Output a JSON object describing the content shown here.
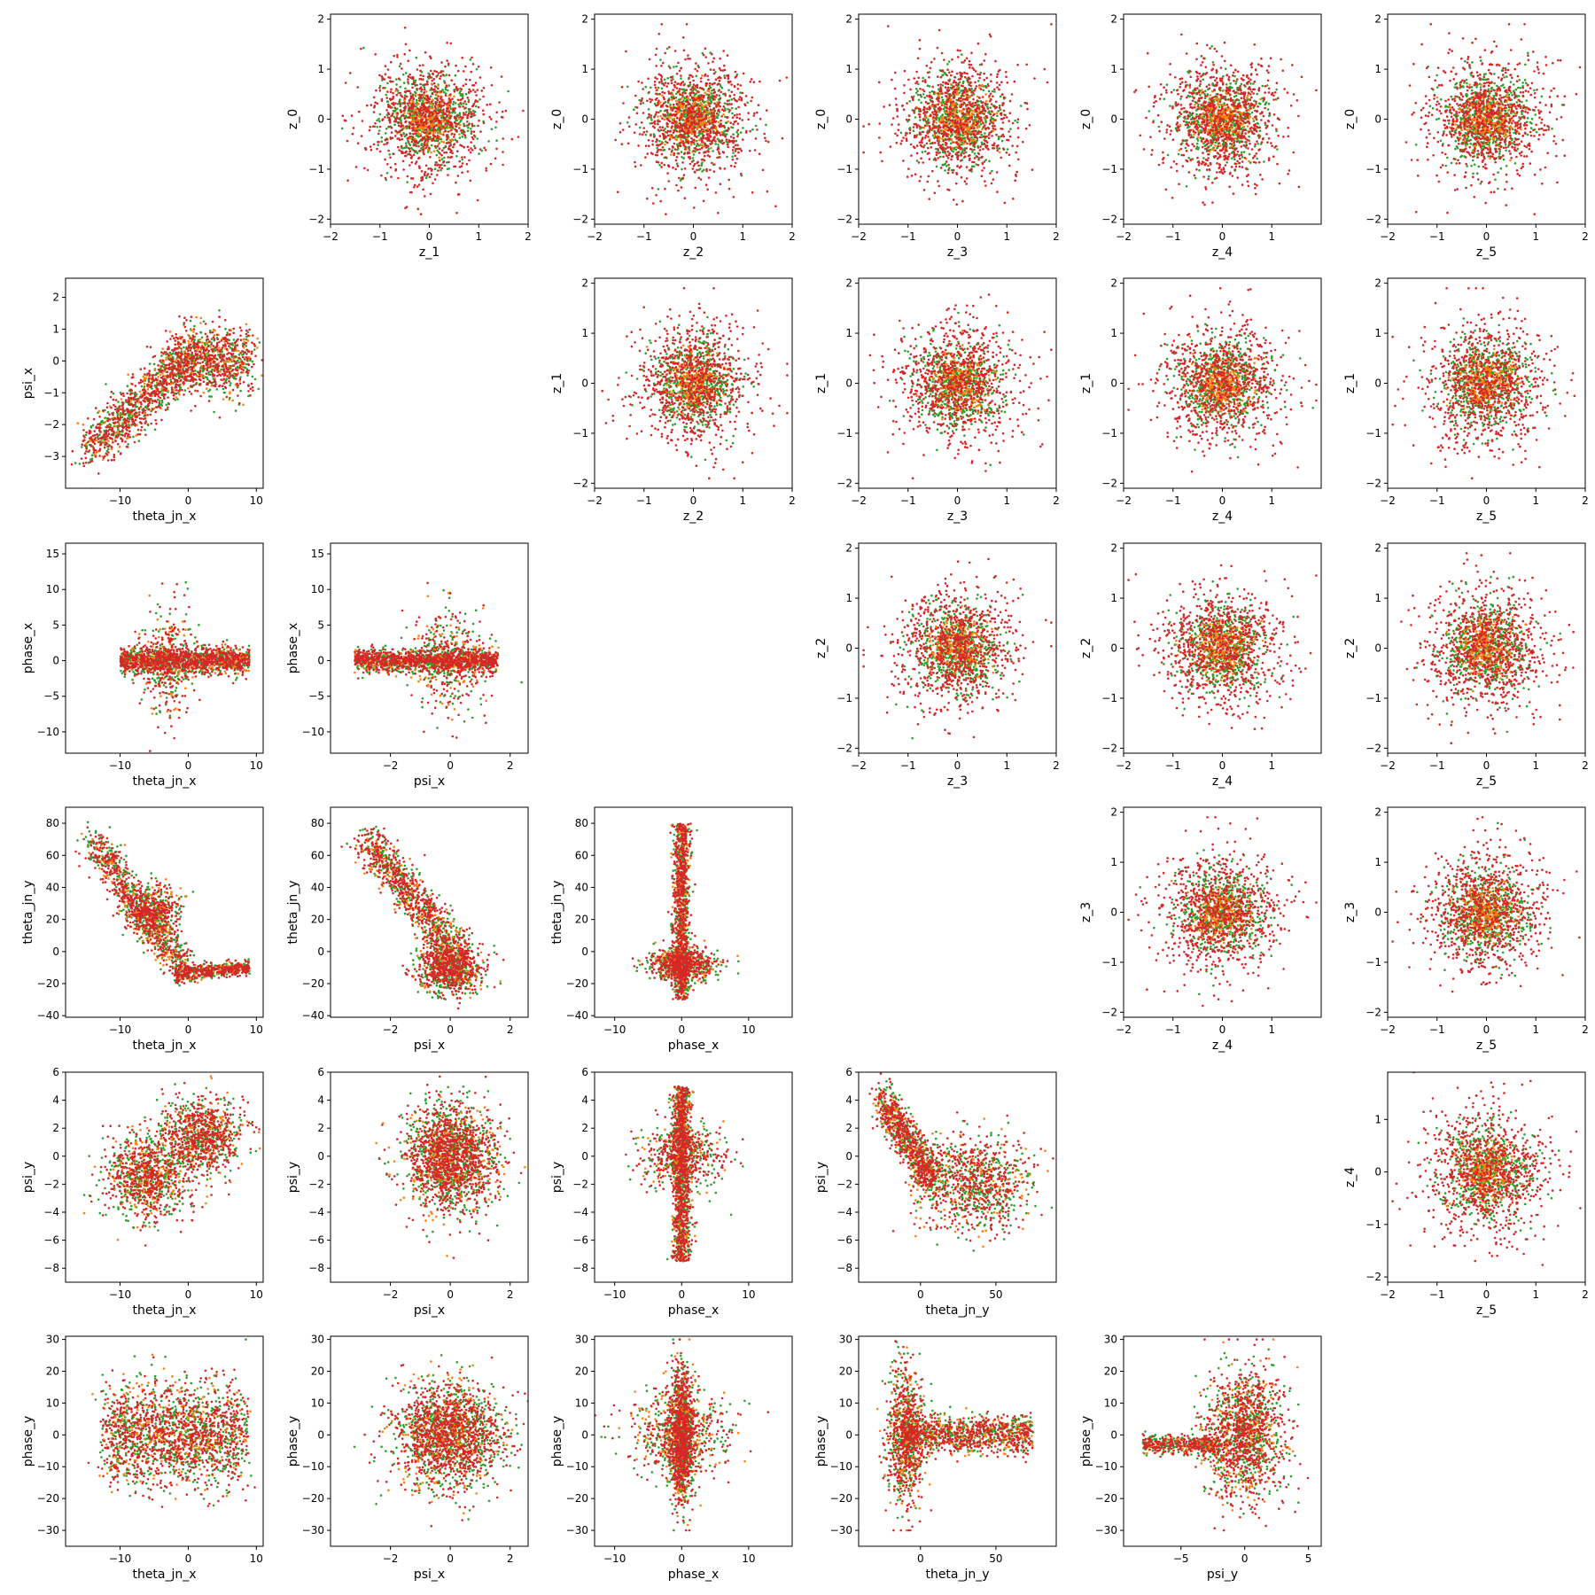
{
  "figure": {
    "layout": "6x6 lower/upper scatter matrix, diagonal empty"
  },
  "colors": {
    "red": "#d62728",
    "green": "#2ca02c",
    "orange": "#ff7f0e"
  },
  "chart_data": {
    "type": "scatter",
    "series_colors": [
      "#d62728",
      "#2ca02c",
      "#ff7f0e"
    ],
    "axes": [
      {
        "row": 0,
        "col": 1,
        "xlabel": "z_1",
        "ylabel": "z_0",
        "xlim": [
          -2,
          2
        ],
        "ylim": [
          -2.1,
          2.1
        ],
        "xticks": [
          -2,
          -1,
          0,
          1,
          2
        ],
        "yticks": [
          -2,
          -1,
          0,
          1,
          2
        ],
        "pattern": "gauss",
        "xc": 0,
        "yc": 0,
        "xs": 0.6,
        "ys": 0.6
      },
      {
        "row": 0,
        "col": 2,
        "xlabel": "z_2",
        "ylabel": "z_0",
        "xlim": [
          -2,
          2
        ],
        "ylim": [
          -2.1,
          2.1
        ],
        "xticks": [
          -2,
          -1,
          0,
          1,
          2
        ],
        "yticks": [
          -2,
          -1,
          0,
          1,
          2
        ],
        "pattern": "gauss",
        "xc": 0,
        "yc": 0,
        "xs": 0.6,
        "ys": 0.6
      },
      {
        "row": 0,
        "col": 3,
        "xlabel": "z_3",
        "ylabel": "z_0",
        "xlim": [
          -2,
          2
        ],
        "ylim": [
          -2.1,
          2.1
        ],
        "xticks": [
          -2,
          -1,
          0,
          1,
          2
        ],
        "yticks": [
          -2,
          -1,
          0,
          1,
          2
        ],
        "pattern": "gauss",
        "xc": 0,
        "yc": 0,
        "xs": 0.6,
        "ys": 0.6
      },
      {
        "row": 0,
        "col": 4,
        "xlabel": "z_4",
        "ylabel": "z_0",
        "xlim": [
          -2,
          2
        ],
        "ylim": [
          -2.1,
          2.1
        ],
        "xticks": [
          -2,
          -1,
          0,
          1
        ],
        "yticks": [
          -2,
          -1,
          0,
          1,
          2
        ],
        "pattern": "gauss",
        "xc": 0,
        "yc": 0,
        "xs": 0.6,
        "ys": 0.6
      },
      {
        "row": 0,
        "col": 5,
        "xlabel": "z_5",
        "ylabel": "z_0",
        "xlim": [
          -2,
          2
        ],
        "ylim": [
          -2.1,
          2.1
        ],
        "xticks": [
          -2,
          -1,
          0,
          1,
          2
        ],
        "yticks": [
          -2,
          -1,
          0,
          1,
          2
        ],
        "pattern": "gauss",
        "xc": 0,
        "yc": 0,
        "xs": 0.6,
        "ys": 0.6
      },
      {
        "row": 1,
        "col": 0,
        "xlabel": "theta_jn_x",
        "ylabel": "psi_x",
        "xlim": [
          -18,
          11
        ],
        "ylim": [
          -4,
          2.6
        ],
        "xticks": [
          -10,
          0,
          10
        ],
        "yticks": [
          -3,
          -2,
          -1,
          0,
          1,
          2
        ],
        "pattern": "tjx_psix"
      },
      {
        "row": 1,
        "col": 2,
        "xlabel": "z_2",
        "ylabel": "z_1",
        "xlim": [
          -2,
          2
        ],
        "ylim": [
          -2.1,
          2.1
        ],
        "xticks": [
          -2,
          -1,
          0,
          1,
          2
        ],
        "yticks": [
          -2,
          -1,
          0,
          1,
          2
        ],
        "pattern": "gauss",
        "xc": 0,
        "yc": 0,
        "xs": 0.6,
        "ys": 0.6
      },
      {
        "row": 1,
        "col": 3,
        "xlabel": "z_3",
        "ylabel": "z_1",
        "xlim": [
          -2,
          2
        ],
        "ylim": [
          -2.1,
          2.1
        ],
        "xticks": [
          -2,
          -1,
          0,
          1,
          2
        ],
        "yticks": [
          -2,
          -1,
          0,
          1,
          2
        ],
        "pattern": "gauss",
        "xc": 0,
        "yc": 0,
        "xs": 0.6,
        "ys": 0.6
      },
      {
        "row": 1,
        "col": 4,
        "xlabel": "z_4",
        "ylabel": "z_1",
        "xlim": [
          -2,
          2
        ],
        "ylim": [
          -2.1,
          2.1
        ],
        "xticks": [
          -2,
          -1,
          0,
          1
        ],
        "yticks": [
          -2,
          -1,
          0,
          1,
          2
        ],
        "pattern": "gauss",
        "xc": 0,
        "yc": 0,
        "xs": 0.6,
        "ys": 0.6
      },
      {
        "row": 1,
        "col": 5,
        "xlabel": "z_5",
        "ylabel": "z_1",
        "xlim": [
          -2,
          2
        ],
        "ylim": [
          -2.1,
          2.1
        ],
        "xticks": [
          -2,
          -1,
          0,
          1,
          2
        ],
        "yticks": [
          -2,
          -1,
          0,
          1,
          2
        ],
        "pattern": "gauss",
        "xc": 0,
        "yc": 0,
        "xs": 0.6,
        "ys": 0.6
      },
      {
        "row": 2,
        "col": 0,
        "xlabel": "theta_jn_x",
        "ylabel": "phase_x",
        "xlim": [
          -18,
          11
        ],
        "ylim": [
          -13,
          16.5
        ],
        "xticks": [
          -10,
          0,
          10
        ],
        "yticks": [
          -10,
          -5,
          0,
          5,
          10,
          15
        ],
        "pattern": "tjx_phx"
      },
      {
        "row": 2,
        "col": 1,
        "xlabel": "psi_x",
        "ylabel": "phase_x",
        "xlim": [
          -4,
          2.6
        ],
        "ylim": [
          -13,
          16.5
        ],
        "xticks": [
          -2,
          0,
          2
        ],
        "yticks": [
          -10,
          -5,
          0,
          5,
          10,
          15
        ],
        "pattern": "psix_phx"
      },
      {
        "row": 2,
        "col": 3,
        "xlabel": "z_3",
        "ylabel": "z_2",
        "xlim": [
          -2,
          2
        ],
        "ylim": [
          -2.1,
          2.1
        ],
        "xticks": [
          -2,
          -1,
          0,
          1,
          2
        ],
        "yticks": [
          -2,
          -1,
          0,
          1,
          2
        ],
        "pattern": "gauss",
        "xc": 0,
        "yc": 0,
        "xs": 0.6,
        "ys": 0.6
      },
      {
        "row": 2,
        "col": 4,
        "xlabel": "z_4",
        "ylabel": "z_2",
        "xlim": [
          -2,
          2
        ],
        "ylim": [
          -2.1,
          2.1
        ],
        "xticks": [
          -2,
          -1,
          0,
          1
        ],
        "yticks": [
          -2,
          -1,
          0,
          1,
          2
        ],
        "pattern": "gauss",
        "xc": 0,
        "yc": 0,
        "xs": 0.6,
        "ys": 0.6
      },
      {
        "row": 2,
        "col": 5,
        "xlabel": "z_5",
        "ylabel": "z_2",
        "xlim": [
          -2,
          2
        ],
        "ylim": [
          -2.1,
          2.1
        ],
        "xticks": [
          -2,
          -1,
          0,
          1,
          2
        ],
        "yticks": [
          -2,
          -1,
          0,
          1,
          2
        ],
        "pattern": "gauss",
        "xc": 0,
        "yc": 0,
        "xs": 0.6,
        "ys": 0.6
      },
      {
        "row": 3,
        "col": 0,
        "xlabel": "theta_jn_x",
        "ylabel": "theta_jn_y",
        "xlim": [
          -18,
          11
        ],
        "ylim": [
          -41,
          90
        ],
        "xticks": [
          -10,
          0,
          10
        ],
        "yticks": [
          -40,
          -20,
          0,
          20,
          40,
          60,
          80
        ],
        "pattern": "tjx_tjy"
      },
      {
        "row": 3,
        "col": 1,
        "xlabel": "psi_x",
        "ylabel": "theta_jn_y",
        "xlim": [
          -4,
          2.6
        ],
        "ylim": [
          -41,
          90
        ],
        "xticks": [
          -2,
          0,
          2
        ],
        "yticks": [
          -40,
          -20,
          0,
          20,
          40,
          60,
          80
        ],
        "pattern": "psix_tjy"
      },
      {
        "row": 3,
        "col": 2,
        "xlabel": "phase_x",
        "ylabel": "theta_jn_y",
        "xlim": [
          -13,
          16.5
        ],
        "ylim": [
          -41,
          90
        ],
        "xticks": [
          -10,
          0,
          10
        ],
        "yticks": [
          -40,
          -20,
          0,
          20,
          40,
          60,
          80
        ],
        "pattern": "phx_tjy"
      },
      {
        "row": 3,
        "col": 4,
        "xlabel": "z_4",
        "ylabel": "z_3",
        "xlim": [
          -2,
          2
        ],
        "ylim": [
          -2.1,
          2.1
        ],
        "xticks": [
          -2,
          -1,
          0,
          1
        ],
        "yticks": [
          -2,
          -1,
          0,
          1,
          2
        ],
        "pattern": "gauss",
        "xc": 0,
        "yc": 0,
        "xs": 0.6,
        "ys": 0.6
      },
      {
        "row": 3,
        "col": 5,
        "xlabel": "z_5",
        "ylabel": "z_3",
        "xlim": [
          -2,
          2
        ],
        "ylim": [
          -2.1,
          2.1
        ],
        "xticks": [
          -2,
          -1,
          0,
          1,
          2
        ],
        "yticks": [
          -2,
          -1,
          0,
          1,
          2
        ],
        "pattern": "gauss",
        "xc": 0,
        "yc": 0,
        "xs": 0.6,
        "ys": 0.6
      },
      {
        "row": 4,
        "col": 0,
        "xlabel": "theta_jn_x",
        "ylabel": "psi_y",
        "xlim": [
          -18,
          11
        ],
        "ylim": [
          -9,
          6
        ],
        "xticks": [
          -10,
          0,
          10
        ],
        "yticks": [
          -8,
          -6,
          -4,
          -2,
          0,
          2,
          4,
          6
        ],
        "pattern": "tjx_psiy"
      },
      {
        "row": 4,
        "col": 1,
        "xlabel": "psi_x",
        "ylabel": "psi_y",
        "xlim": [
          -4,
          2.6
        ],
        "ylim": [
          -9,
          6
        ],
        "xticks": [
          -2,
          0,
          2
        ],
        "yticks": [
          -8,
          -6,
          -4,
          -2,
          0,
          2,
          4,
          6
        ],
        "pattern": "psix_psiy"
      },
      {
        "row": 4,
        "col": 2,
        "xlabel": "phase_x",
        "ylabel": "psi_y",
        "xlim": [
          -13,
          16.5
        ],
        "ylim": [
          -9,
          6
        ],
        "xticks": [
          -10,
          0,
          10
        ],
        "yticks": [
          -8,
          -6,
          -4,
          -2,
          0,
          2,
          4,
          6
        ],
        "pattern": "phx_psiy"
      },
      {
        "row": 4,
        "col": 3,
        "xlabel": "theta_jn_y",
        "ylabel": "psi_y",
        "xlim": [
          -41,
          90
        ],
        "ylim": [
          -9,
          6
        ],
        "xticks": [
          0,
          50
        ],
        "yticks": [
          -8,
          -6,
          -4,
          -2,
          0,
          2,
          4,
          6
        ],
        "pattern": "tjy_psiy"
      },
      {
        "row": 4,
        "col": 5,
        "xlabel": "z_5",
        "ylabel": "z_4",
        "xlim": [
          -2,
          2
        ],
        "ylim": [
          -2.1,
          1.9
        ],
        "xticks": [
          -2,
          -1,
          0,
          1,
          2
        ],
        "yticks": [
          -2,
          -1,
          0,
          1
        ],
        "pattern": "gauss",
        "xc": 0,
        "yc": 0,
        "xs": 0.6,
        "ys": 0.6
      },
      {
        "row": 5,
        "col": 0,
        "xlabel": "theta_jn_x",
        "ylabel": "phase_y",
        "xlim": [
          -18,
          11
        ],
        "ylim": [
          -35,
          31
        ],
        "xticks": [
          -10,
          0,
          10
        ],
        "yticks": [
          -30,
          -20,
          -10,
          0,
          10,
          20,
          30
        ],
        "pattern": "tjx_phy"
      },
      {
        "row": 5,
        "col": 1,
        "xlabel": "psi_x",
        "ylabel": "phase_y",
        "xlim": [
          -4,
          2.6
        ],
        "ylim": [
          -35,
          31
        ],
        "xticks": [
          -2,
          0,
          2
        ],
        "yticks": [
          -30,
          -20,
          -10,
          0,
          10,
          20,
          30
        ],
        "pattern": "psix_phy"
      },
      {
        "row": 5,
        "col": 2,
        "xlabel": "phase_x",
        "ylabel": "phase_y",
        "xlim": [
          -13,
          16.5
        ],
        "ylim": [
          -35,
          31
        ],
        "xticks": [
          -10,
          0,
          10
        ],
        "yticks": [
          -30,
          -20,
          -10,
          0,
          10,
          20,
          30
        ],
        "pattern": "phx_phy"
      },
      {
        "row": 5,
        "col": 3,
        "xlabel": "theta_jn_y",
        "ylabel": "phase_y",
        "xlim": [
          -41,
          90
        ],
        "ylim": [
          -35,
          31
        ],
        "xticks": [
          0,
          50
        ],
        "yticks": [
          -30,
          -20,
          -10,
          0,
          10,
          20,
          30
        ],
        "pattern": "tjy_phy"
      },
      {
        "row": 5,
        "col": 4,
        "xlabel": "psi_y",
        "ylabel": "phase_y",
        "xlim": [
          -9.5,
          6
        ],
        "ylim": [
          -35,
          31
        ],
        "xticks": [
          -5,
          0,
          5
        ],
        "yticks": [
          -30,
          -20,
          -10,
          0,
          10,
          20,
          30
        ],
        "pattern": "psiy_phy"
      }
    ]
  }
}
